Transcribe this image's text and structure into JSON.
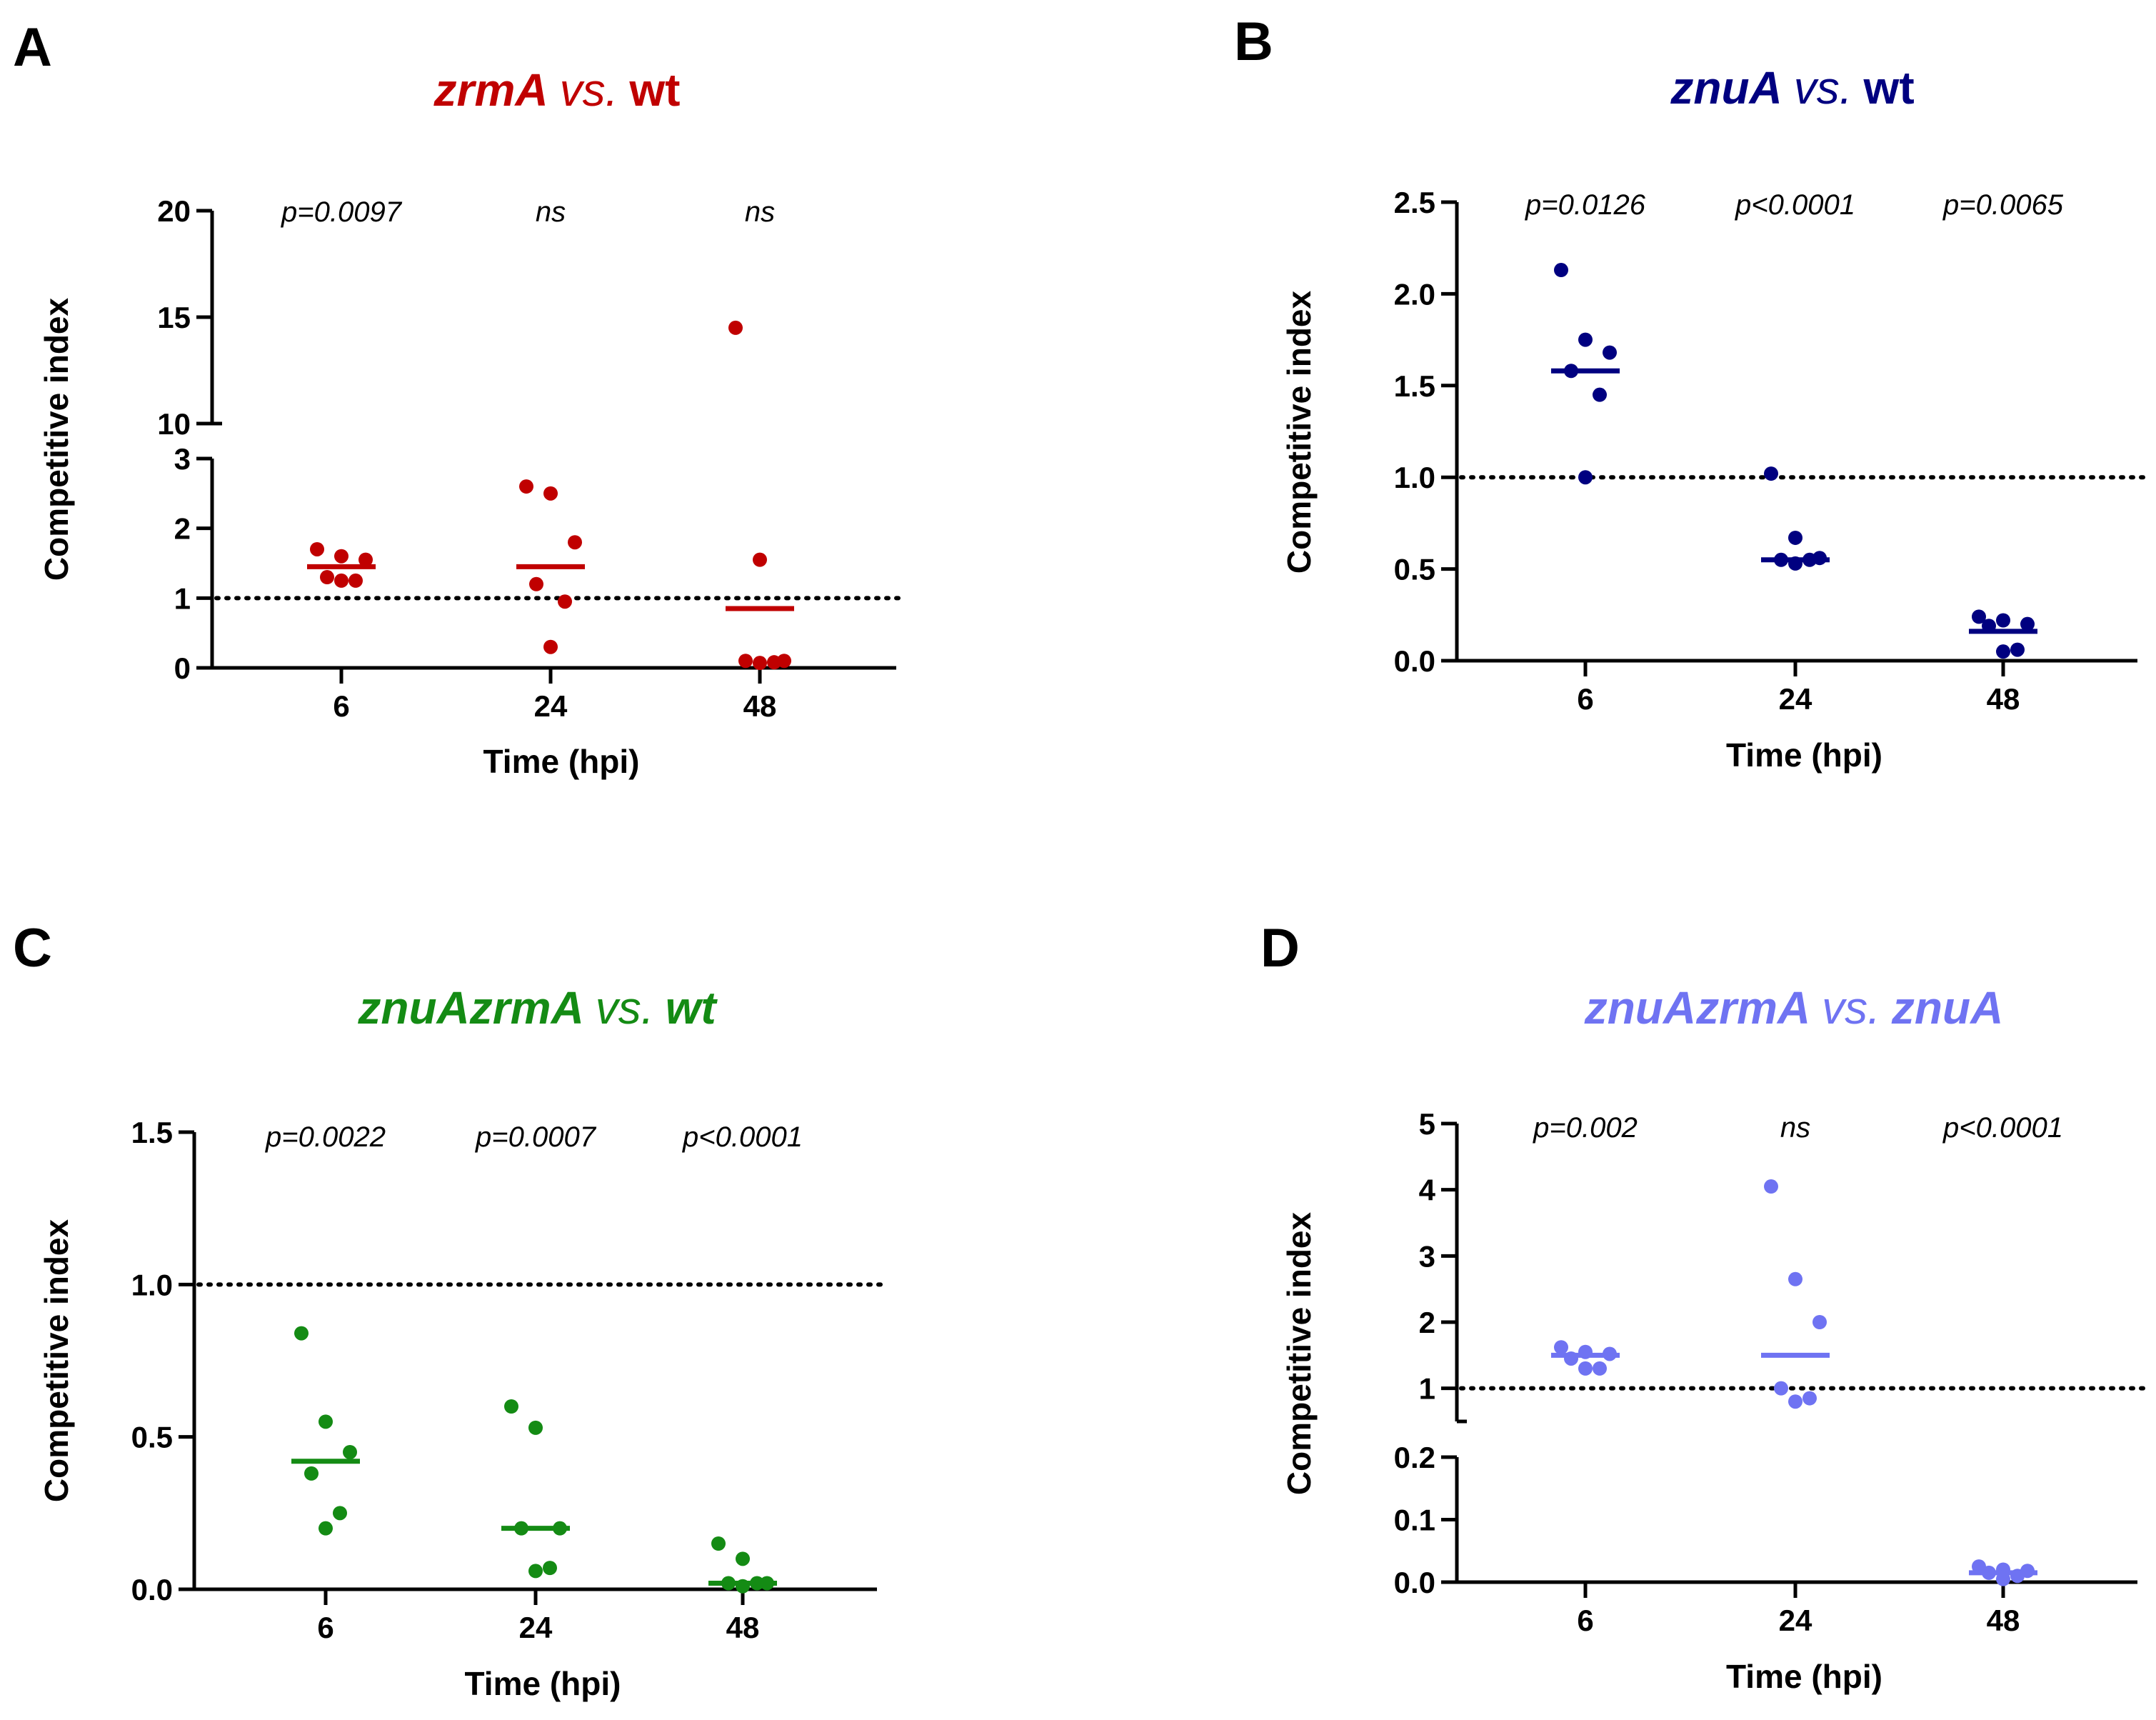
{
  "chart_data": [
    {
      "type": "scatter",
      "panel_label": "A",
      "title": {
        "part1": "zrmA",
        "part2": "vs.",
        "part3": "wt"
      },
      "colors": {
        "title": [
          "#c00000",
          "#c00000",
          "#c00000"
        ],
        "data": "#c00000"
      },
      "categories": [
        "6",
        "24",
        "48"
      ],
      "xlabel": "Time (hpi)",
      "ylabel": "Competitive index",
      "axis_break": {
        "lower": [
          0,
          3
        ],
        "upper": [
          10,
          20
        ]
      },
      "yticks": [
        {
          "value": 0,
          "label": "0"
        },
        {
          "value": 1,
          "label": "1"
        },
        {
          "value": 2,
          "label": "2"
        },
        {
          "value": 3,
          "label": "3"
        },
        {
          "value": 10,
          "label": "10"
        },
        {
          "value": 15,
          "label": "15"
        },
        {
          "value": 20,
          "label": "20"
        }
      ],
      "reference_line": 1,
      "pvalues": [
        "p=0.0097",
        "ns",
        "ns"
      ],
      "groups": [
        {
          "x": "6",
          "points": [
            1.7,
            1.6,
            1.55,
            1.3,
            1.25,
            1.25
          ],
          "median": 1.45
        },
        {
          "x": "24",
          "points": [
            2.6,
            2.5,
            1.8,
            1.2,
            0.95,
            0.3
          ],
          "median": 1.45
        },
        {
          "x": "48",
          "points": [
            14.5,
            1.55,
            0.1,
            0.1,
            0.08,
            0.07
          ],
          "median": 0.85
        }
      ]
    },
    {
      "type": "scatter",
      "panel_label": "B",
      "title": {
        "part1": "znuA",
        "part2": "vs.",
        "part3": "wt"
      },
      "colors": {
        "title": [
          "#000080",
          "#000080",
          "#000080"
        ],
        "data": "#000080"
      },
      "categories": [
        "6",
        "24",
        "48"
      ],
      "xlabel": "Time (hpi)",
      "ylabel": "Competitive index",
      "ylim": [
        0,
        2.5
      ],
      "yticks": [
        {
          "value": 0,
          "label": "0.0"
        },
        {
          "value": 0.5,
          "label": "0.5"
        },
        {
          "value": 1,
          "label": "1.0"
        },
        {
          "value": 1.5,
          "label": "1.5"
        },
        {
          "value": 2,
          "label": "2.0"
        },
        {
          "value": 2.5,
          "label": "2.5"
        }
      ],
      "reference_line": 1,
      "pvalues": [
        "p=0.0126",
        "p<0.0001",
        "p=0.0065"
      ],
      "groups": [
        {
          "x": "6",
          "points": [
            2.13,
            1.75,
            1.68,
            1.58,
            1.45,
            1.0
          ],
          "median": 1.58
        },
        {
          "x": "24",
          "points": [
            1.02,
            0.67,
            0.56,
            0.55,
            0.55,
            0.53
          ],
          "median": 0.55
        },
        {
          "x": "48",
          "points": [
            0.24,
            0.22,
            0.2,
            0.19,
            0.06,
            0.05
          ],
          "median": 0.16
        }
      ]
    },
    {
      "type": "scatter",
      "panel_label": "C",
      "title": {
        "part1": "znuAzrmA",
        "part2": "vs.",
        "part3": "wt"
      },
      "colors": {
        "title": [
          "#148b14",
          "#148b14",
          "#148b14"
        ],
        "data": "#148b14"
      },
      "categories": [
        "6",
        "24",
        "48"
      ],
      "xlabel": "Time (hpi)",
      "ylabel": "Competitive index",
      "ylim": [
        0,
        1.5
      ],
      "yticks": [
        {
          "value": 0,
          "label": "0.0"
        },
        {
          "value": 0.5,
          "label": "0.5"
        },
        {
          "value": 1,
          "label": "1.0"
        },
        {
          "value": 1.5,
          "label": "1.5"
        }
      ],
      "reference_line": 1,
      "pvalues": [
        "p=0.0022",
        "p=0.0007",
        "p<0.0001"
      ],
      "groups": [
        {
          "x": "6",
          "points": [
            0.84,
            0.55,
            0.45,
            0.38,
            0.25,
            0.2
          ],
          "median": 0.42
        },
        {
          "x": "24",
          "points": [
            0.6,
            0.53,
            0.2,
            0.2,
            0.07,
            0.06
          ],
          "median": 0.2
        },
        {
          "x": "48",
          "points": [
            0.15,
            0.1,
            0.02,
            0.02,
            0.02,
            0.01
          ],
          "median": 0.02
        }
      ]
    },
    {
      "type": "scatter",
      "panel_label": "D",
      "title": {
        "part1": "znuAzrmA",
        "part2": "vs.",
        "part3": "znuA"
      },
      "colors": {
        "title": [
          "#6f73f2",
          "#6f73f2",
          "#6f73f2"
        ],
        "data": "#6f73f2"
      },
      "categories": [
        "6",
        "24",
        "48"
      ],
      "xlabel": "Time (hpi)",
      "ylabel": "Competitive index",
      "axis_break": {
        "lower": [
          0,
          0.2
        ],
        "upper": [
          0.5,
          5
        ]
      },
      "yticks": [
        {
          "value": 0,
          "label": "0.0"
        },
        {
          "value": 0.1,
          "label": "0.1"
        },
        {
          "value": 0.2,
          "label": "0.2"
        },
        {
          "value": 1,
          "label": "1"
        },
        {
          "value": 2,
          "label": "2"
        },
        {
          "value": 3,
          "label": "3"
        },
        {
          "value": 4,
          "label": "4"
        },
        {
          "value": 5,
          "label": "5"
        }
      ],
      "reference_line": 1,
      "pvalues": [
        "p=0.002",
        "ns",
        "p<0.0001"
      ],
      "groups": [
        {
          "x": "6",
          "points": [
            1.62,
            1.55,
            1.52,
            1.45,
            1.3,
            1.3
          ],
          "median": 1.5
        },
        {
          "x": "24",
          "points": [
            4.05,
            2.65,
            2.0,
            1.0,
            0.85,
            0.8
          ],
          "median": 1.5
        },
        {
          "x": "48",
          "points": [
            0.025,
            0.02,
            0.018,
            0.015,
            0.01,
            0.005
          ],
          "median": 0.015
        }
      ]
    }
  ]
}
